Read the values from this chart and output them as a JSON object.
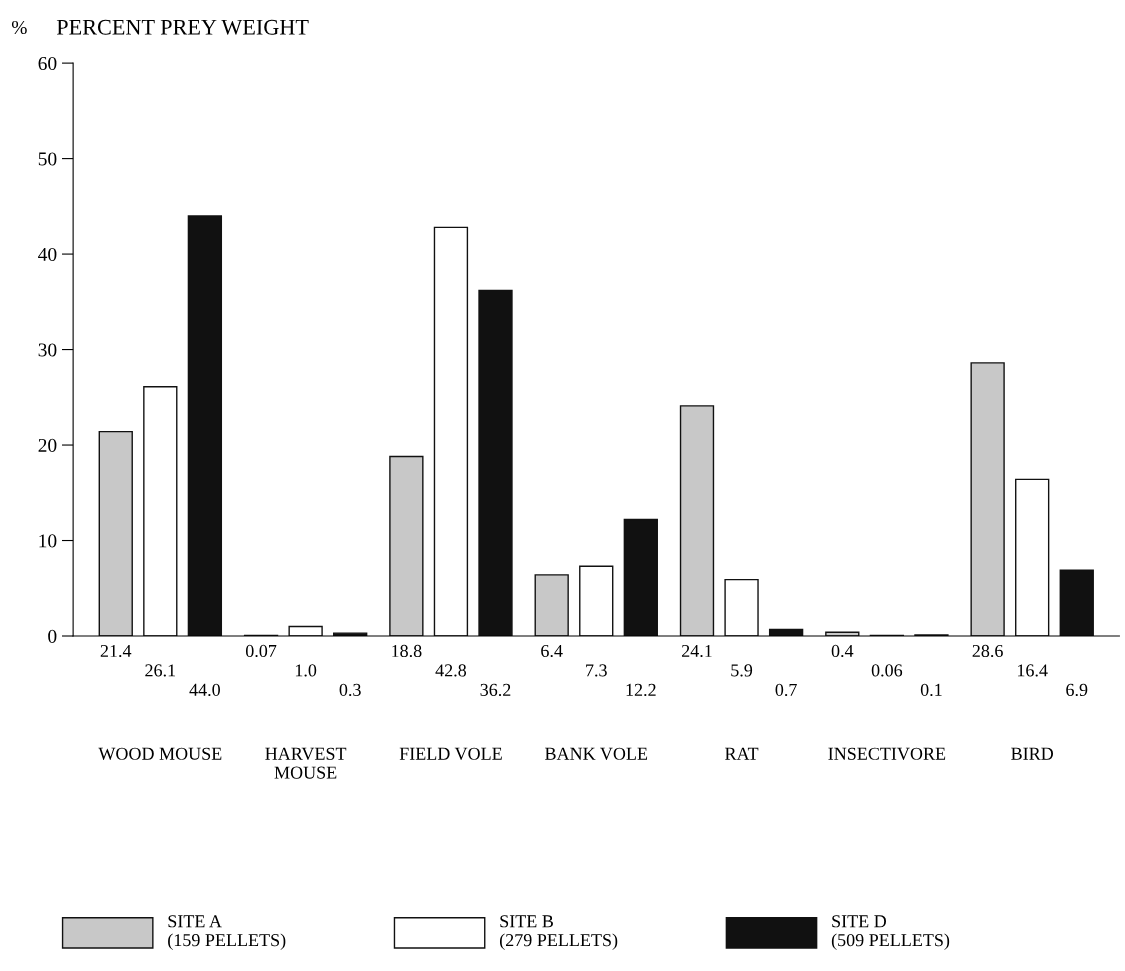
{
  "chart_data": {
    "type": "bar",
    "title": "PERCENT PREY WEIGHT",
    "ylabel": "%",
    "categories": [
      "WOOD MOUSE",
      "HARVEST\nMOUSE",
      "FIELD VOLE",
      "BANK VOLE",
      "RAT",
      "INSECTIVORE",
      "BIRD"
    ],
    "series": [
      {
        "name": "SITE A\n(159 PELLETS)",
        "color": "#c8c8c8",
        "values": [
          21.4,
          0.07,
          18.8,
          6.4,
          24.1,
          0.4,
          28.6
        ],
        "value_labels": [
          "21.4",
          "0.07",
          "18.8",
          "6.4",
          "24.1",
          "0.4",
          "28.6"
        ]
      },
      {
        "name": "SITE B\n(279 PELLETS)",
        "color": "#ffffff",
        "values": [
          26.1,
          1.0,
          42.8,
          7.3,
          5.9,
          0.06,
          16.4
        ],
        "value_labels": [
          "26.1",
          "1.0",
          "42.8",
          "7.3",
          "5.9",
          "0.06",
          "16.4"
        ]
      },
      {
        "name": "SITE D\n(509 PELLETS)",
        "color": "#111111",
        "values": [
          44.0,
          0.3,
          36.2,
          12.2,
          0.7,
          0.1,
          6.9
        ],
        "value_labels": [
          "44.0",
          "0.3",
          "36.2",
          "12.2",
          "0.7",
          "0.1",
          "6.9"
        ]
      }
    ],
    "ylim": [
      0,
      60
    ],
    "yticks": [
      0,
      10,
      20,
      30,
      40,
      50,
      60
    ],
    "legend": "bottom",
    "grid": false
  }
}
